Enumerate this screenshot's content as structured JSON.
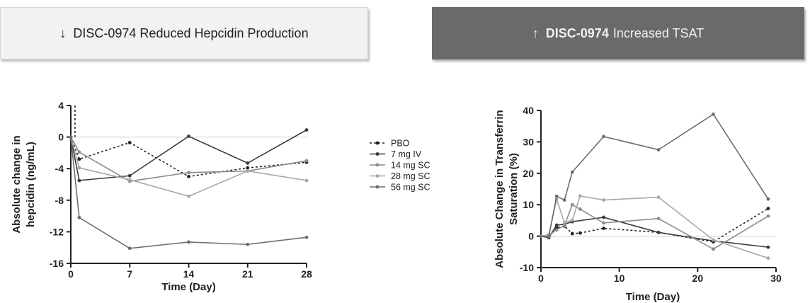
{
  "banners": {
    "left": {
      "arrow": "↓",
      "prefix": "",
      "text": "DISC-0974 Reduced Hepcidin Production"
    },
    "right": {
      "arrow": "↑",
      "prefix": "DISC-0974",
      "text": "Increased TSAT"
    }
  },
  "colors": {
    "banner_left_bg": "#f2f2f2",
    "banner_right_bg": "#6a6a6a",
    "PBO": "#222222",
    "7 mg IV": "#3a3a3a",
    "14 mg SC": "#8c8c8c",
    "28 mg SC": "#a8a8a8",
    "56 mg SC": "#6e6e6e"
  },
  "legend": {
    "placement": "between-charts",
    "entries": [
      "PBO",
      "7 mg IV",
      "14 mg SC",
      "28 mg SC",
      "56 mg SC"
    ]
  },
  "chart_data": [
    {
      "type": "line",
      "xlabel": "Time (Day)",
      "ylabel": "Absolute change in hepcidin (ng/mL)",
      "xlim": [
        0,
        28
      ],
      "ylim": [
        -16,
        4
      ],
      "x_ticks": [
        0,
        7,
        14,
        21,
        28
      ],
      "y_ticks": [
        4,
        0,
        -4,
        -8,
        -12,
        -16
      ],
      "grid": false,
      "zero_line": true,
      "series": [
        {
          "name": "PBO",
          "style": "dotted",
          "x": [
            0,
            1,
            7,
            14,
            21,
            28
          ],
          "y": [
            0,
            -2.8,
            -0.7,
            -5.0,
            -3.9,
            -3.2
          ]
        },
        {
          "name": "7 mg IV",
          "style": "solid",
          "x": [
            0,
            1,
            7,
            14,
            21,
            28
          ],
          "y": [
            0,
            -5.5,
            -4.9,
            0.1,
            -3.3,
            0.9
          ]
        },
        {
          "name": "14 mg SC",
          "style": "solid",
          "x": [
            0,
            1,
            7,
            14,
            21,
            28
          ],
          "y": [
            0,
            -1.9,
            -5.6,
            -4.5,
            -4.3,
            -3.0
          ]
        },
        {
          "name": "28 mg SC",
          "style": "solid",
          "x": [
            0,
            1,
            7,
            14,
            21,
            28
          ],
          "y": [
            0,
            -3.9,
            -5.4,
            -7.5,
            -4.3,
            -5.5
          ]
        },
        {
          "name": "56 mg SC",
          "style": "solid",
          "x": [
            0,
            1,
            7,
            14,
            21,
            28
          ],
          "y": [
            0,
            -10.2,
            -14.1,
            -13.3,
            -13.6,
            -12.7
          ]
        }
      ]
    },
    {
      "type": "line",
      "xlabel": "Time (Day)",
      "ylabel": "Absolute Change in Transferrin Saturation (%)",
      "xlim": [
        0,
        30
      ],
      "ylim": [
        -10,
        40
      ],
      "x_ticks": [
        0,
        10,
        20,
        30
      ],
      "y_ticks": [
        40,
        30,
        20,
        10,
        0,
        -10
      ],
      "grid": false,
      "zero_line": true,
      "series": [
        {
          "name": "PBO",
          "style": "dotted",
          "x": [
            0,
            1,
            2,
            3,
            4,
            5,
            8,
            15,
            22,
            29
          ],
          "y": [
            0,
            -0.3,
            2.7,
            3.2,
            0.8,
            1.0,
            2.5,
            1.2,
            -1.8,
            8.8
          ]
        },
        {
          "name": "7 mg IV",
          "style": "solid",
          "x": [
            0,
            1,
            2,
            3,
            4,
            8,
            15,
            22,
            29
          ],
          "y": [
            0,
            -0.5,
            3.5,
            3.8,
            4.6,
            6.0,
            1.2,
            -1.5,
            -3.5
          ]
        },
        {
          "name": "14 mg SC",
          "style": "solid",
          "x": [
            0,
            1,
            2,
            3,
            4,
            5,
            8,
            15,
            22,
            29
          ],
          "y": [
            0,
            0.3,
            2.0,
            3.4,
            10.0,
            8.6,
            4.2,
            5.6,
            -4.1,
            6.4
          ]
        },
        {
          "name": "28 mg SC",
          "style": "solid",
          "x": [
            0,
            1,
            2,
            3,
            4,
            5,
            8,
            15,
            22,
            29
          ],
          "y": [
            0,
            0.5,
            11.7,
            4.3,
            5.1,
            12.8,
            11.5,
            12.4,
            -1.2,
            -7.0
          ]
        },
        {
          "name": "56 mg SC",
          "style": "solid",
          "x": [
            0,
            1,
            2,
            3,
            4,
            8,
            15,
            22,
            29
          ],
          "y": [
            0,
            -0.2,
            12.7,
            11.5,
            20.4,
            31.7,
            27.5,
            38.8,
            11.8
          ]
        }
      ]
    }
  ]
}
